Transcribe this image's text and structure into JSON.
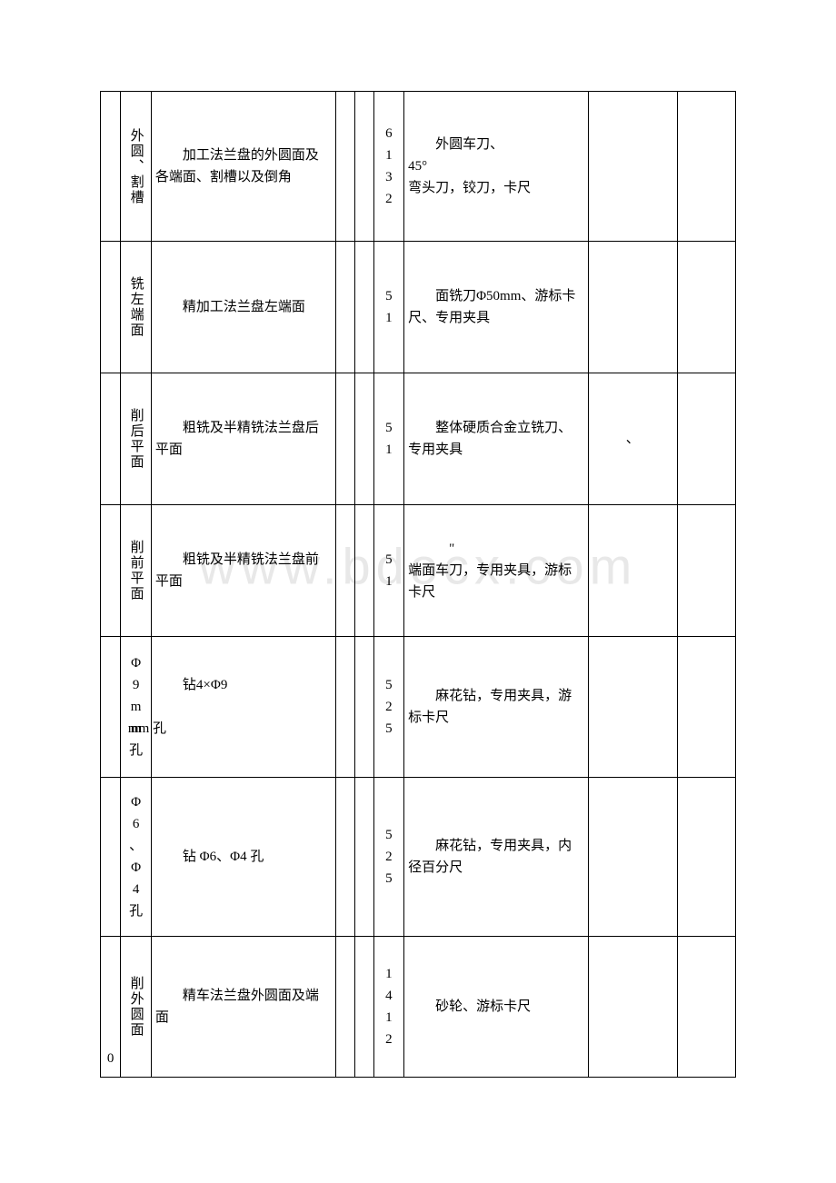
{
  "watermark": "www.bdocx.com",
  "table": {
    "border_color": "#000000",
    "background_color": "#ffffff",
    "text_color": "#000000",
    "font_size": 15,
    "columns": [
      {
        "width": "3.2%"
      },
      {
        "width": "4.8%"
      },
      {
        "width": "29%"
      },
      {
        "width": "3%"
      },
      {
        "width": "3%"
      },
      {
        "width": "4.8%"
      },
      {
        "width": "29%"
      },
      {
        "width": "14%"
      },
      {
        "width": "9.2%"
      }
    ],
    "rows": [
      {
        "c1": "",
        "c2": "外圆、割槽",
        "c3": "加工法兰盘的外圆面及各端面、割槽以及倒角",
        "c4": "",
        "c5": "",
        "c6": "6132",
        "c7_prefix": "外圆车刀、",
        "c7_deg": "45°",
        "c7_rest": "弯头刀，铰刀，卡尺",
        "c8": "",
        "c9": ""
      },
      {
        "c1": "",
        "c2": "铣左端面",
        "c3": "精加工法兰盘左端面",
        "c4": "",
        "c5": "",
        "c6": "51",
        "c7": "面铣刀Φ50mm、游标卡尺、专用夹具",
        "c8": "",
        "c9": ""
      },
      {
        "c1": "",
        "c2": "削后平面",
        "c3": "粗铣及半精铣法兰盘后平面",
        "c4": "",
        "c5": "",
        "c6": "51",
        "c7": "整体硬质合金立铣刀、专用夹具",
        "c8": "、",
        "c9": ""
      },
      {
        "c1": "",
        "c2": "削前平面",
        "c3": "粗铣及半精铣法兰盘前平面",
        "c4": "",
        "c5": "",
        "c6": "51",
        "c7_quote": "\"",
        "c7_rest2": "端面车刀，专用夹具，游标卡尺",
        "c8": "",
        "c9": ""
      },
      {
        "c1": "",
        "c2": "Φ9mm孔",
        "c3_prefix": "钻",
        "c3_formula": "4×Φ9",
        "c3_suffix": "mm 孔",
        "c4": "",
        "c5": "",
        "c6": "525",
        "c7": "麻花钻，专用夹具，游标卡尺",
        "c8": "",
        "c9": ""
      },
      {
        "c1": "",
        "c2": "Φ6、Φ4孔",
        "c3": "钻 Φ6、Φ4 孔",
        "c4": "",
        "c5": "",
        "c6": "525",
        "c7": "麻花钻，专用夹具，内径百分尺",
        "c8": "",
        "c9": ""
      },
      {
        "c1": "0",
        "c2": "削外圆面",
        "c3": "精车法兰盘外圆面及端面",
        "c4": "",
        "c5": "",
        "c6": "1412",
        "c7": "砂轮、游标卡尺",
        "c8": "",
        "c9": ""
      }
    ]
  }
}
